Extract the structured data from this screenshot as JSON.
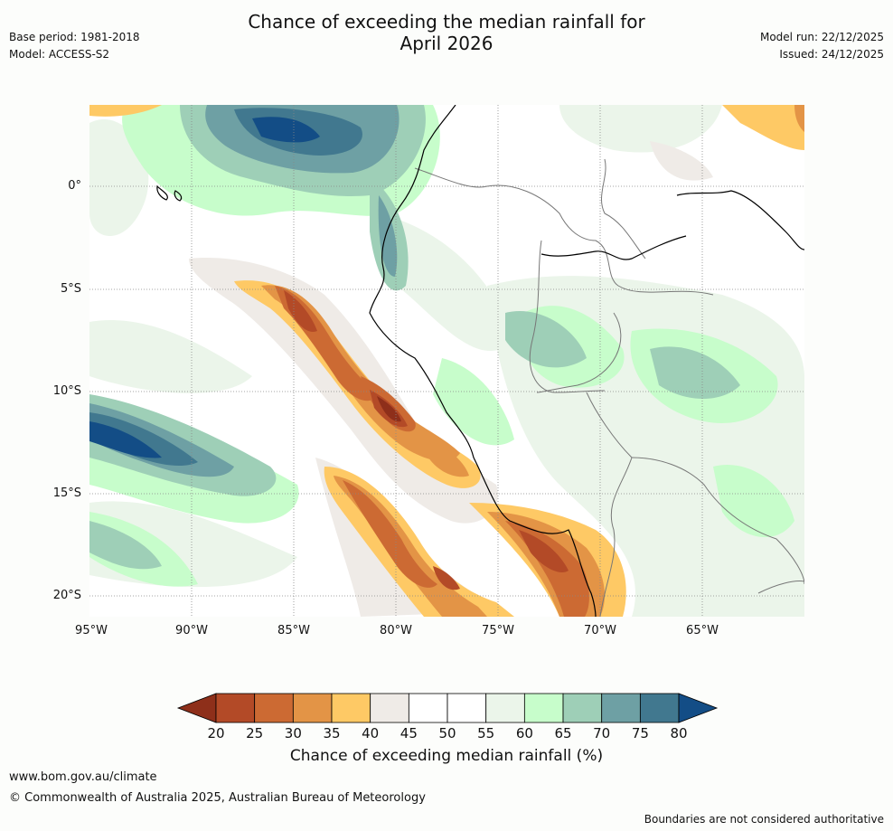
{
  "title": {
    "line1": "Chance of exceeding the median rainfall for",
    "line2": "April 2026"
  },
  "meta": {
    "base_period": "Base period: 1981-2018",
    "model": "Model: ACCESS-S2",
    "model_run": "Model run: 22/12/2025",
    "issued": "Issued: 24/12/2025"
  },
  "map": {
    "lat_labels": [
      "0°",
      "5°S",
      "10°S",
      "15°S",
      "20°S"
    ],
    "lon_labels": [
      "95°W",
      "90°W",
      "85°W",
      "80°W",
      "75°W",
      "70°W",
      "65°W"
    ],
    "lat_values": [
      0,
      -5,
      -10,
      -15,
      -20
    ],
    "lon_values": [
      -95,
      -90,
      -85,
      -80,
      -75,
      -70,
      -65
    ],
    "extent": {
      "lon_min": -95,
      "lon_max": -60,
      "lat_min": -21,
      "lat_max": 4
    }
  },
  "legend": {
    "label": "Chance of exceeding median rainfall (%)",
    "ticks": [
      "20",
      "25",
      "30",
      "35",
      "40",
      "45",
      "50",
      "55",
      "60",
      "65",
      "70",
      "75",
      "80"
    ],
    "colors": [
      "#8e2f1a",
      "#b34a27",
      "#cc6a33",
      "#e39446",
      "#fec965",
      "#efebe7",
      "#ffffff",
      "#ffffff",
      "#ebf5ea",
      "#c7fdcb",
      "#9ecfb7",
      "#6ea0a4",
      "#41788f",
      "#134d86"
    ]
  },
  "footer": {
    "url": "www.bom.gov.au/climate",
    "copyright": "© Commonwealth of Australia 2025, Australian Bureau of Meteorology",
    "note": "Boundaries are not considered authoritative"
  }
}
